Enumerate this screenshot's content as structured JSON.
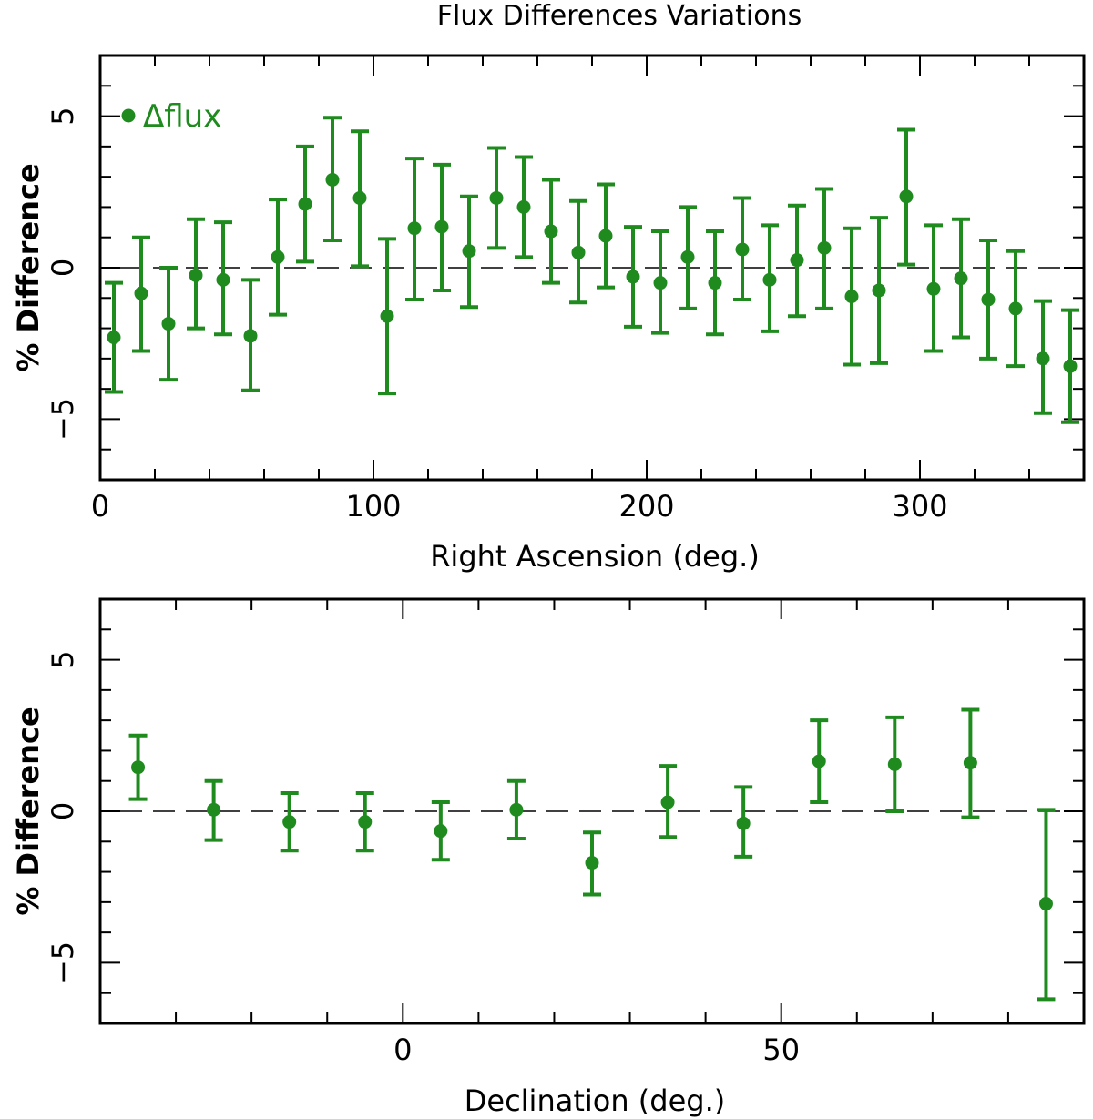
{
  "colors": {
    "series": "#1f8b1f",
    "axis": "#000000"
  },
  "chart_data": [
    {
      "type": "scatter",
      "title": "Flux Differences Variations",
      "xlabel": "Right Ascension (deg.)",
      "ylabel": "% Difference",
      "xlim": [
        0,
        360
      ],
      "ylim": [
        -7,
        7
      ],
      "xticks": [
        0,
        100,
        200,
        300
      ],
      "xtick_labels": [
        "0",
        "100",
        "200",
        "300"
      ],
      "yticks": [
        -5,
        0,
        5
      ],
      "ytick_labels": [
        "−5",
        "0",
        "5"
      ],
      "reference_line": 0,
      "legend": {
        "label": "Δflux",
        "position": "top-left"
      },
      "series": [
        {
          "name": "Δflux",
          "x": [
            5,
            15,
            25,
            35,
            45,
            55,
            65,
            75,
            85,
            95,
            105,
            115,
            125,
            135,
            145,
            155,
            165,
            175,
            185,
            195,
            205,
            215,
            225,
            235,
            245,
            255,
            265,
            275,
            285,
            295,
            305,
            315,
            325,
            335,
            345,
            355
          ],
          "y": [
            -2.3,
            -0.85,
            -1.85,
            -0.25,
            -0.4,
            -2.25,
            0.35,
            2.1,
            2.9,
            2.3,
            -1.6,
            1.3,
            1.35,
            0.55,
            2.3,
            2.0,
            1.2,
            0.5,
            1.05,
            -0.3,
            -0.5,
            0.35,
            -0.5,
            0.6,
            -0.4,
            0.25,
            0.65,
            -0.95,
            -0.75,
            2.35,
            -0.7,
            -0.35,
            -1.05,
            -1.35,
            -3.0,
            -3.25
          ],
          "err_low": [
            -4.1,
            -2.75,
            -3.7,
            -2.0,
            -2.2,
            -4.05,
            -1.55,
            0.2,
            0.9,
            0.05,
            -4.15,
            -1.05,
            -0.75,
            -1.3,
            0.65,
            0.35,
            -0.5,
            -1.15,
            -0.65,
            -1.95,
            -2.15,
            -1.35,
            -2.2,
            -1.05,
            -2.1,
            -1.6,
            -1.35,
            -3.2,
            -3.15,
            0.1,
            -2.75,
            -2.3,
            -3.0,
            -3.25,
            -4.8,
            -5.1
          ],
          "err_high": [
            -0.5,
            1.0,
            0.0,
            1.6,
            1.5,
            -0.4,
            2.25,
            4.0,
            4.95,
            4.5,
            0.95,
            3.6,
            3.4,
            2.35,
            3.95,
            3.65,
            2.9,
            2.2,
            2.75,
            1.35,
            1.2,
            2.0,
            1.2,
            2.3,
            1.4,
            2.05,
            2.6,
            1.3,
            1.65,
            4.55,
            1.4,
            1.6,
            0.9,
            0.55,
            -1.1,
            -1.4
          ]
        }
      ]
    },
    {
      "type": "scatter",
      "xlabel": "Declination (deg.)",
      "ylabel": "% Difference",
      "xlim": [
        -40,
        90
      ],
      "ylim": [
        -7,
        7
      ],
      "xticks": [
        0,
        50
      ],
      "xtick_labels": [
        "0",
        "50"
      ],
      "yticks": [
        -5,
        0,
        5
      ],
      "ytick_labels": [
        "−5",
        "0",
        "5"
      ],
      "reference_line": 0,
      "series": [
        {
          "name": "Δflux",
          "x": [
            -35,
            -25,
            -15,
            -5,
            5,
            15,
            25,
            35,
            45,
            55,
            65,
            75,
            85
          ],
          "y": [
            1.45,
            0.05,
            -0.35,
            -0.35,
            -0.65,
            0.05,
            -1.7,
            0.3,
            -0.4,
            1.65,
            1.55,
            1.6,
            -3.05
          ],
          "err_low": [
            0.4,
            -0.95,
            -1.3,
            -1.3,
            -1.6,
            -0.9,
            -2.75,
            -0.85,
            -1.5,
            0.3,
            0.0,
            -0.2,
            -6.2
          ],
          "err_high": [
            2.5,
            1.0,
            0.6,
            0.6,
            0.3,
            1.0,
            -0.7,
            1.5,
            0.8,
            3.0,
            3.1,
            3.35,
            0.05
          ]
        }
      ]
    }
  ]
}
